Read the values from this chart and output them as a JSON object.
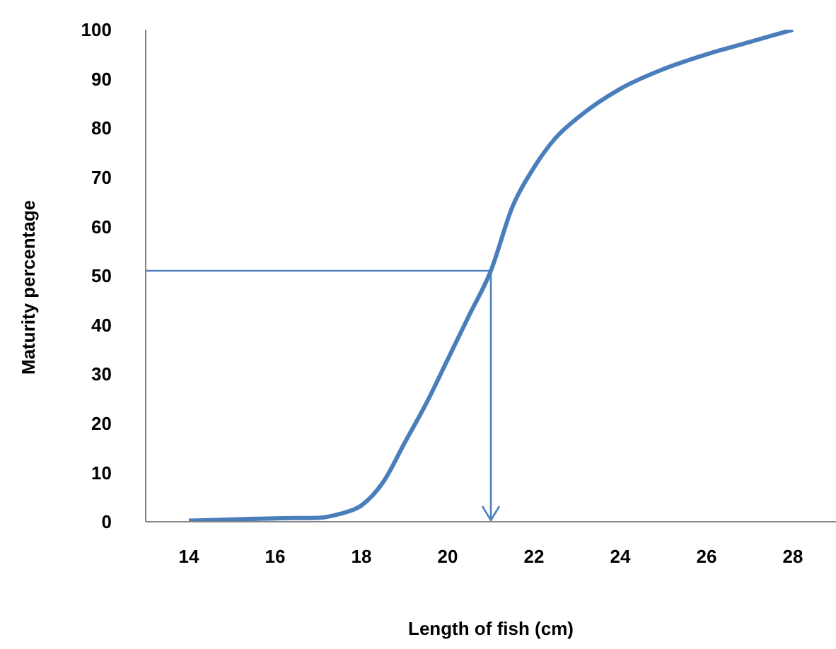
{
  "chart_data": {
    "type": "line",
    "xlabel": "Length of fish (cm)",
    "ylabel": "Maturity percentage",
    "x": [
      14,
      16,
      17,
      17.5,
      18,
      18.5,
      19,
      19.5,
      20,
      20.5,
      21,
      21.5,
      22,
      22.5,
      23,
      24,
      25,
      26,
      27,
      28
    ],
    "series": [
      {
        "color": "#4a7ebb",
        "values": [
          0.2,
          0.7,
          0.8,
          1.6,
          3.3,
          8,
          16,
          24,
          33,
          42,
          51,
          64,
          72,
          78,
          82,
          88,
          92,
          95,
          97.5,
          100
        ]
      }
    ],
    "xlim": [
      13,
      29
    ],
    "xticks": [
      14,
      16,
      18,
      20,
      22,
      24,
      26,
      28
    ],
    "ylim": [
      0,
      100
    ],
    "yticks": [
      0,
      10,
      20,
      30,
      40,
      50,
      60,
      70,
      80,
      90,
      100
    ],
    "ref_lines": [
      {
        "axis": "y",
        "value": 51,
        "color": "#4f81bd"
      },
      {
        "axis": "x",
        "value": 21,
        "color": "#4f81bd"
      }
    ],
    "grid": false,
    "legend": false,
    "marker": "none",
    "line_style": "solid"
  }
}
